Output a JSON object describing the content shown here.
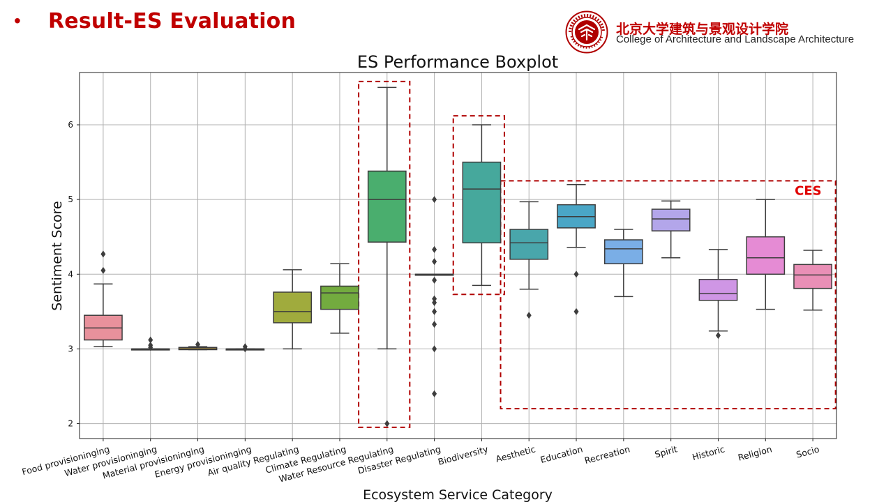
{
  "slide": {
    "bullet": "•",
    "title": "Result-ES Evaluation",
    "institution_cn": "北京大学建筑与景观设计学院",
    "institution_en": "College of Architecture and Landscape Architecture",
    "logo_icon": "peking-university-seal-icon",
    "accent_color": "#c00000"
  },
  "chart_data": {
    "type": "boxplot",
    "title": "ES Performance Boxplot",
    "xlabel": "Ecosystem Service Category",
    "ylabel": "Sentiment Score",
    "ylim": [
      1.8,
      6.7
    ],
    "yticks": [
      2,
      3,
      4,
      5,
      6
    ],
    "grid": true,
    "categories": [
      {
        "name": "Food provisioninging",
        "color": "#e8919c",
        "whisker_low": 3.03,
        "q1": 3.12,
        "median": 3.28,
        "q3": 3.45,
        "whisker_high": 3.87,
        "outliers": [
          4.05,
          4.27
        ]
      },
      {
        "name": "Water provisioninging",
        "color": "#dd9a57",
        "whisker_low": 3.0,
        "q1": 3.0,
        "median": 3.0,
        "q3": 3.0,
        "whisker_high": 3.0,
        "outliers": [
          3.02,
          3.05,
          3.12
        ]
      },
      {
        "name": "Material provisioninging",
        "color": "#c9a53f",
        "whisker_low": 2.99,
        "q1": 2.99,
        "median": 3.0,
        "q3": 3.02,
        "whisker_high": 3.03,
        "outliers": [
          3.06
        ]
      },
      {
        "name": "Energy provisioninging",
        "color": "#b3ac3c",
        "whisker_low": 3.0,
        "q1": 3.0,
        "median": 3.0,
        "q3": 3.0,
        "whisker_high": 3.0,
        "outliers": [
          3.0,
          3.03
        ]
      },
      {
        "name": "Air quality Regulating",
        "color": "#a0ab3d",
        "whisker_low": 3.0,
        "q1": 3.35,
        "median": 3.5,
        "q3": 3.76,
        "whisker_high": 4.06,
        "outliers": []
      },
      {
        "name": "Climate Regulating",
        "color": "#73ab3f",
        "whisker_low": 3.21,
        "q1": 3.53,
        "median": 3.75,
        "q3": 3.84,
        "whisker_high": 4.14,
        "outliers": []
      },
      {
        "name": "Water Resource Regulating",
        "color": "#4aae6e",
        "whisker_low": 3.0,
        "q1": 4.43,
        "median": 5.0,
        "q3": 5.38,
        "whisker_high": 6.5,
        "outliers": [
          2.0
        ]
      },
      {
        "name": "Disaster Regulating",
        "color": "#47ad8f",
        "whisker_low": 4.0,
        "q1": 4.0,
        "median": 4.0,
        "q3": 4.0,
        "whisker_high": 4.0,
        "outliers": [
          5.0,
          4.33,
          4.17,
          3.92,
          3.67,
          3.62,
          3.5,
          3.33,
          3.0,
          2.4
        ]
      },
      {
        "name": "Biodiversity",
        "color": "#46a89c",
        "whisker_low": 3.85,
        "q1": 4.42,
        "median": 5.14,
        "q3": 5.5,
        "whisker_high": 6.0,
        "outliers": []
      },
      {
        "name": "Aesthetic",
        "color": "#49a6ab",
        "whisker_low": 3.8,
        "q1": 4.2,
        "median": 4.42,
        "q3": 4.6,
        "whisker_high": 4.97,
        "outliers": [
          3.45
        ]
      },
      {
        "name": "Education",
        "color": "#4aa6c6",
        "whisker_low": 4.36,
        "q1": 4.62,
        "median": 4.77,
        "q3": 4.93,
        "whisker_high": 5.2,
        "outliers": [
          4.0,
          3.5
        ]
      },
      {
        "name": "Recreation",
        "color": "#7aaee6",
        "whisker_low": 3.7,
        "q1": 4.14,
        "median": 4.34,
        "q3": 4.46,
        "whisker_high": 4.6,
        "outliers": []
      },
      {
        "name": "Spirit",
        "color": "#b3a6ea",
        "whisker_low": 4.22,
        "q1": 4.58,
        "median": 4.74,
        "q3": 4.87,
        "whisker_high": 4.98,
        "outliers": []
      },
      {
        "name": "Historic",
        "color": "#cf96e5",
        "whisker_low": 3.24,
        "q1": 3.65,
        "median": 3.74,
        "q3": 3.93,
        "whisker_high": 4.33,
        "outliers": [
          3.18
        ]
      },
      {
        "name": "Religion",
        "color": "#e58bd4",
        "whisker_low": 3.53,
        "q1": 4.0,
        "median": 4.22,
        "q3": 4.5,
        "whisker_high": 5.0,
        "outliers": []
      },
      {
        "name": "Socio",
        "color": "#e98fb6",
        "whisker_low": 3.52,
        "q1": 3.81,
        "median": 3.99,
        "q3": 4.13,
        "whisker_high": 4.32,
        "outliers": []
      }
    ],
    "annotations": [
      {
        "label": "",
        "cat_from": 6,
        "cat_to": 6,
        "y_from": 1.95,
        "y_to": 6.58
      },
      {
        "label": "",
        "cat_from": 8,
        "cat_to": 8,
        "y_from": 3.73,
        "y_to": 6.12
      },
      {
        "label": "CES",
        "cat_from": 9,
        "cat_to": 15,
        "y_from": 2.2,
        "y_to": 5.25
      }
    ],
    "annotation_color": "#b00000"
  }
}
